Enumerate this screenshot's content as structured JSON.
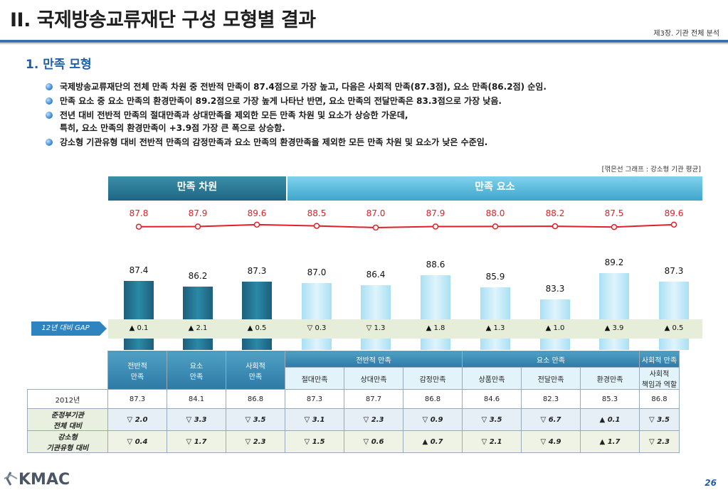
{
  "header": {
    "title": "II. 국제방송교류재단 구성 모형별 결과",
    "chapter": "제3장. 기관 전체 분석"
  },
  "section": {
    "subtitle": "1. 만족 모형"
  },
  "bullets": [
    "국제방송교류재단의 전체 만족 차원 중 전반적 만족이 87.4점으로 가장 높고, 다음은 사회적 만족(87.3점), 요소 만족(86.2점) 순임.",
    "만족 요소 중 요소 만족의 환경만족이 89.2점으로 가장 높게 나타난 반면, 요소 만족의 전달만족은 83.3점으로 가장 낮음.",
    "전년 대비 전반적 만족의 절대만족과 상대만족을 제외한 모든 만족 차원 및 요소가 상승한 가운데,\n특히, 요소 만족의 환경만족이 +3.9점 가장 큰 폭으로 상승함.",
    "강소형 기관유형 대비 전반적 만족의 감정만족과 요소 만족의 환경만족을 제외한 모든 만족 차원 및 요소가 낮은 수준임."
  ],
  "chart_note": "[꺾은선 그래프 : 강소형 기관 평균]",
  "chart_headers": {
    "dimension": "만족 차원",
    "element": "만족 요소"
  },
  "gap_label": "12년 대비 GAP",
  "chart_data": {
    "type": "bar",
    "categories": [
      "전반적 만족",
      "요소 만족",
      "사회적 만족",
      "절대만족",
      "상대만족",
      "감정만족",
      "상품만족",
      "전달만족",
      "환경만족",
      "사회적 책임과 역할"
    ],
    "series": [
      {
        "name": "",
        "values": [
          87.4,
          86.2,
          87.3,
          87.0,
          86.4,
          88.6,
          85.9,
          83.3,
          89.2,
          87.3
        ]
      },
      {
        "name": "강소형 기관 평균",
        "type": "line",
        "values": [
          87.8,
          87.9,
          89.6,
          88.5,
          87.0,
          87.9,
          88.0,
          88.2,
          87.5,
          89.6
        ]
      }
    ],
    "bar_labels": [
      "87.4",
      "86.2",
      "87.3",
      "87.0",
      "86.4",
      "88.6",
      "85.9",
      "83.3",
      "89.2",
      "87.3"
    ],
    "line_labels": [
      "87.8",
      "87.9",
      "89.6",
      "88.5",
      "87.0",
      "87.9",
      "88.0",
      "88.2",
      "87.5",
      "89.6"
    ],
    "gap": [
      "▲ 0.1",
      "▲ 2.1",
      "▲ 0.5",
      "▽ 0.3",
      "▽ 1.3",
      "▲ 1.8",
      "▲ 1.3",
      "▲ 1.0",
      "▲ 3.9",
      "▲ 0.5"
    ],
    "bar_kind": [
      "dark",
      "dark",
      "dark",
      "light",
      "light",
      "light",
      "light",
      "light",
      "light",
      "light"
    ]
  },
  "table": {
    "groups": [
      "전반적 만족",
      "요소 만족",
      "사회적 만족"
    ],
    "dim_cols": [
      "전반적\n만족",
      "요소\n만족",
      "사회적\n만족"
    ],
    "sub_cols": [
      "절대만족",
      "상대만족",
      "감정만족",
      "상품만족",
      "전달만족",
      "환경만족",
      "사회적\n책임과 역할"
    ],
    "rows": [
      {
        "label": "2012년",
        "cells": [
          "87.3",
          "84.1",
          "86.8",
          "87.3",
          "87.7",
          "86.8",
          "84.6",
          "82.3",
          "85.3",
          "86.8"
        ]
      },
      {
        "label": "준정부기관\n전체 대비",
        "cells": [
          "▽ 2.0",
          "▽ 3.3",
          "▽ 3.5",
          "▽ 3.1",
          "▽ 2.3",
          "▽ 0.9",
          "▽ 3.5",
          "▽ 6.7",
          "▲ 0.1",
          "▽ 3.5"
        ]
      },
      {
        "label": "강소형\n기관유형 대비",
        "cells": [
          "▽ 0.4",
          "▽ 1.7",
          "▽ 2.3",
          "▽ 1.5",
          "▽ 0.6",
          "▲ 0.7",
          "▽ 2.1",
          "▽ 4.9",
          "▲ 1.7",
          "▽ 2.3"
        ]
      }
    ]
  },
  "footer": {
    "logo": "KMAC",
    "page": "26"
  }
}
